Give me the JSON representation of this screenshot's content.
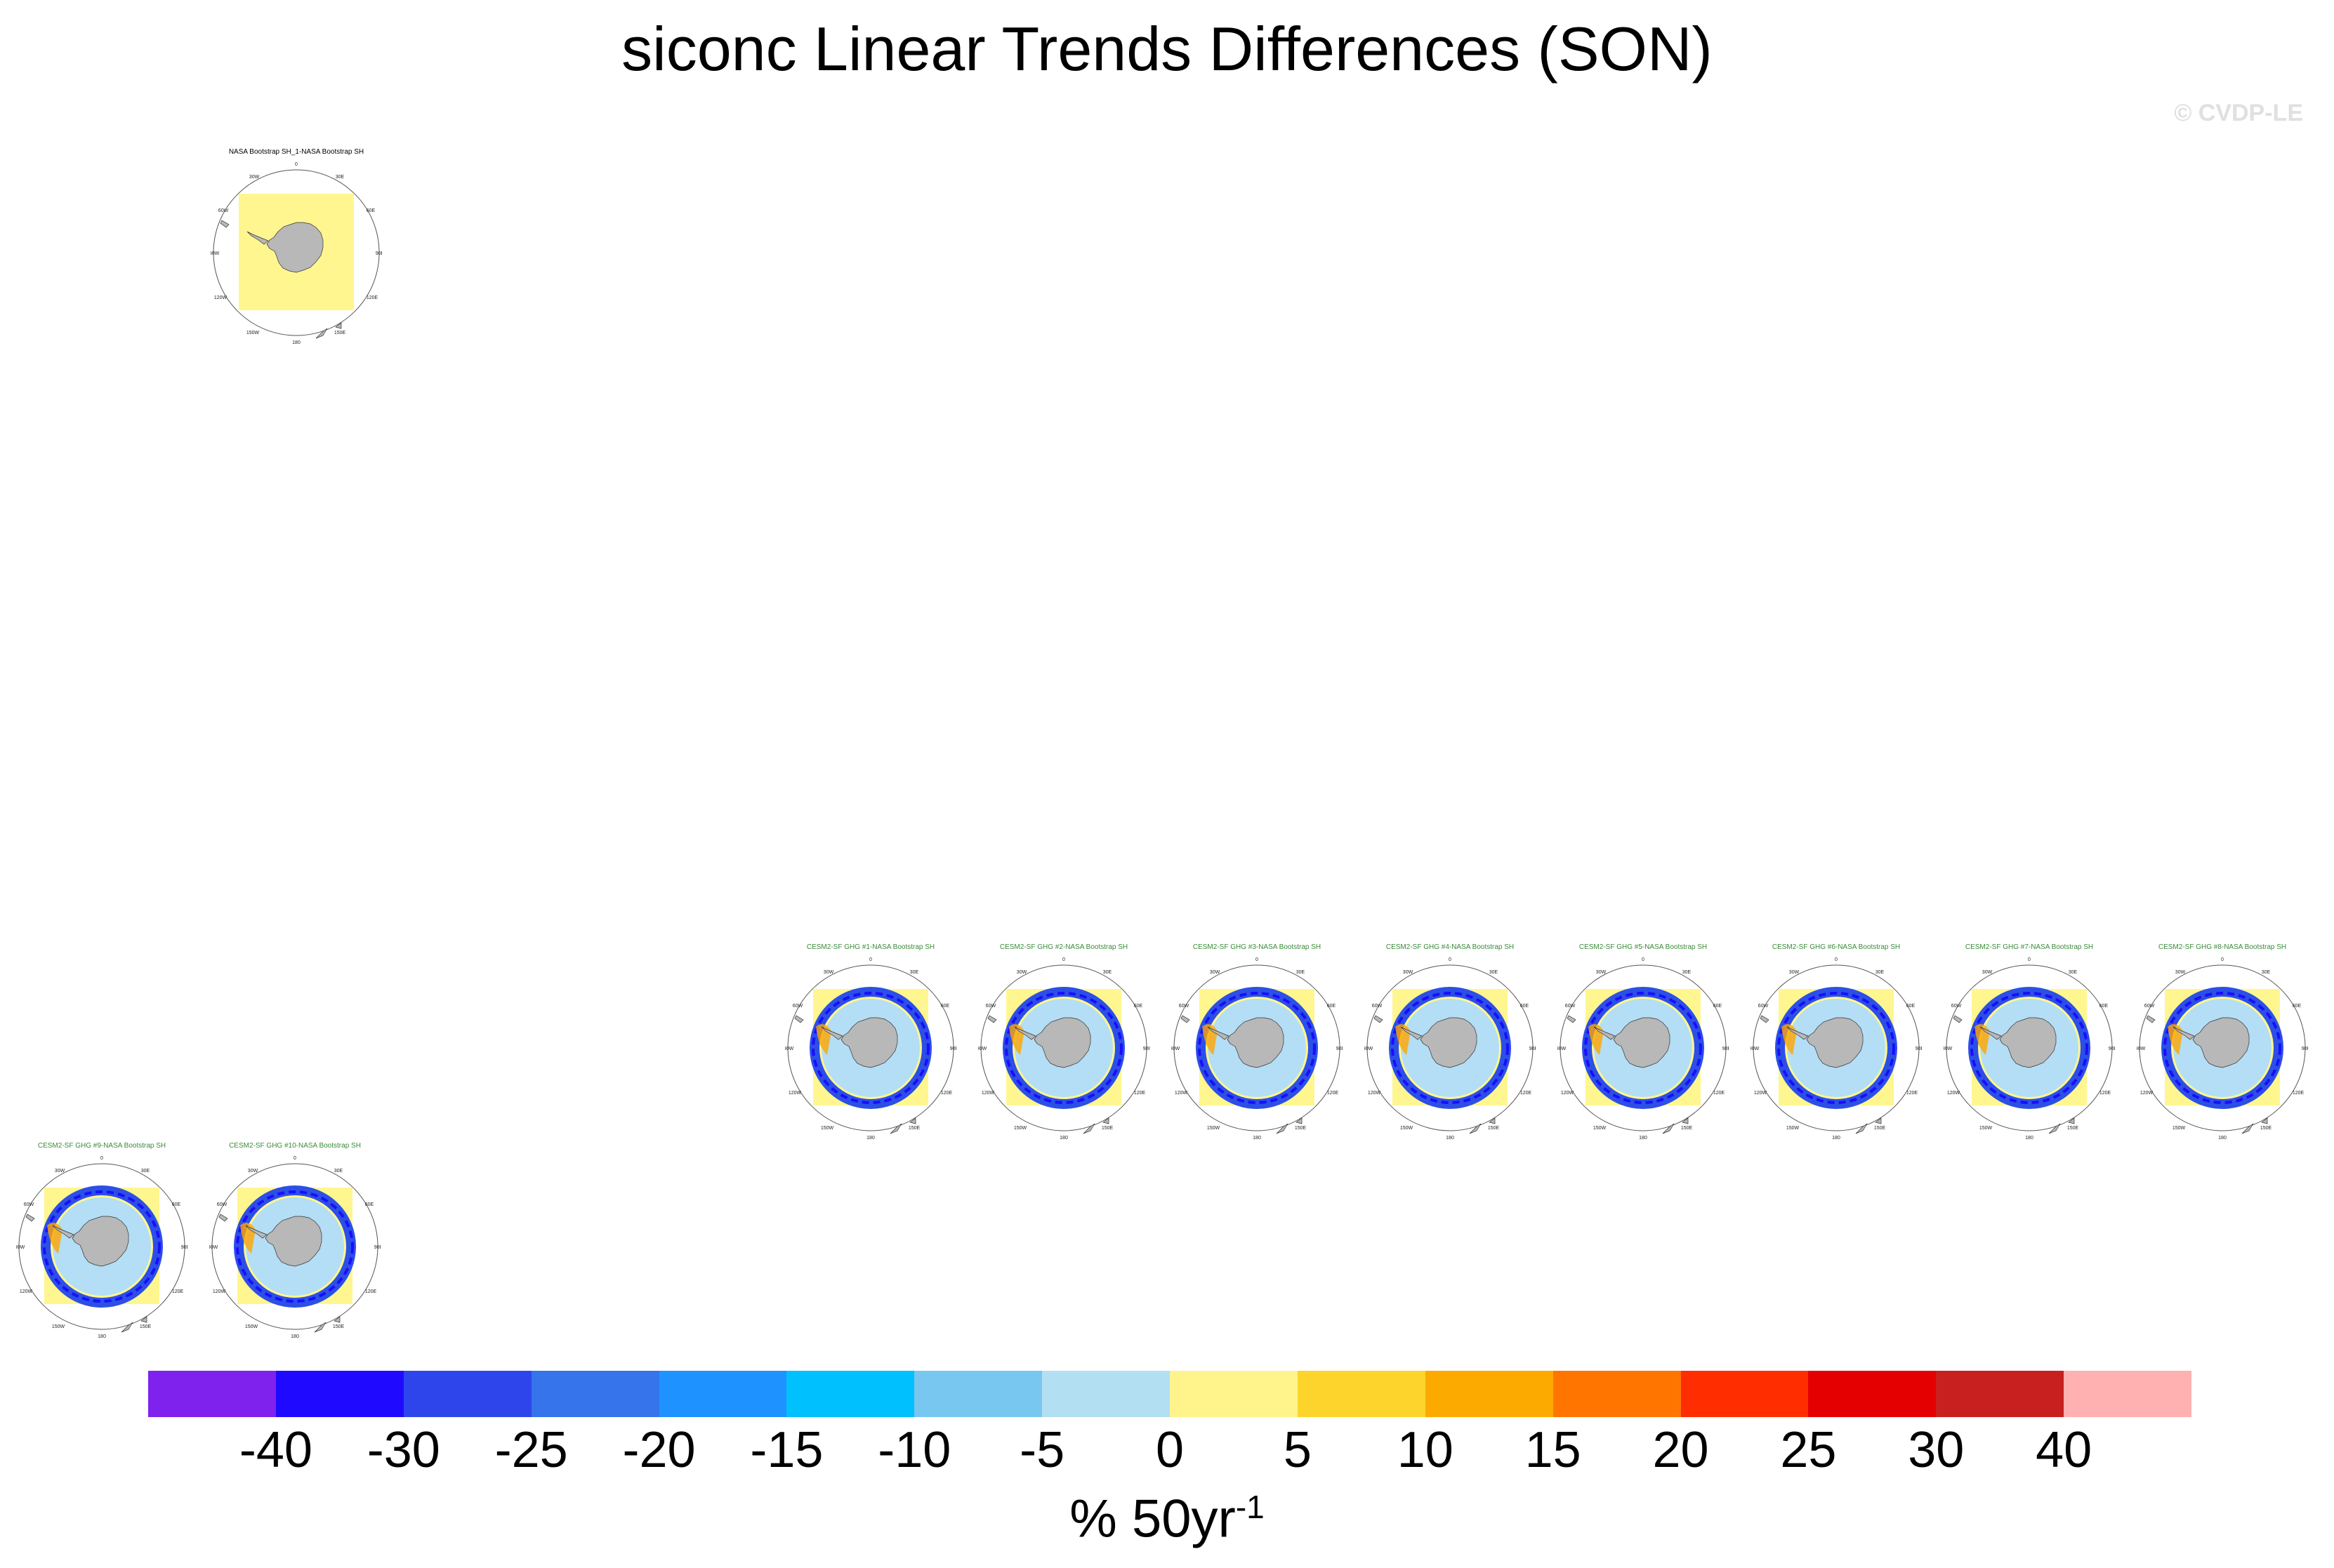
{
  "title": "siconc Linear Trends Differences (SON)",
  "copyright": "© CVDP-LE",
  "panels": [
    {
      "title": "NASA Bootstrap SH_1-NASA Bootstrap SH",
      "kind": "obs",
      "title_color": "#000000"
    },
    {
      "title": "CESM2-SF GHG #1-NASA Bootstrap SH",
      "kind": "model",
      "title_color": "#3a8a3a"
    },
    {
      "title": "CESM2-SF GHG #2-NASA Bootstrap SH",
      "kind": "model",
      "title_color": "#3a8a3a"
    },
    {
      "title": "CESM2-SF GHG #3-NASA Bootstrap SH",
      "kind": "model",
      "title_color": "#3a8a3a"
    },
    {
      "title": "CESM2-SF GHG #4-NASA Bootstrap SH",
      "kind": "model",
      "title_color": "#3a8a3a"
    },
    {
      "title": "CESM2-SF GHG #5-NASA Bootstrap SH",
      "kind": "model",
      "title_color": "#3a8a3a"
    },
    {
      "title": "CESM2-SF GHG #6-NASA Bootstrap SH",
      "kind": "model",
      "title_color": "#3a8a3a"
    },
    {
      "title": "CESM2-SF GHG #7-NASA Bootstrap SH",
      "kind": "model",
      "title_color": "#3a8a3a"
    },
    {
      "title": "CESM2-SF GHG #8-NASA Bootstrap SH",
      "kind": "model",
      "title_color": "#3a8a3a"
    },
    {
      "title": "CESM2-SF GHG #9-NASA Bootstrap SH",
      "kind": "model",
      "title_color": "#3a8a3a"
    },
    {
      "title": "CESM2-SF GHG #10-NASA Bootstrap SH",
      "kind": "model",
      "title_color": "#3a8a3a"
    }
  ],
  "map_labels": {
    "lon_0": "0",
    "lon_30e": "30E",
    "lon_30w": "30W",
    "lon_60e": "60E",
    "lon_60w": "60W",
    "lon_90e": "90E",
    "lon_90w": "90W",
    "lon_120e": "120E",
    "lon_120w": "120W",
    "lon_150e": "150E",
    "lon_150w": "150W",
    "lon_180": "180"
  },
  "map_colors": {
    "land": "#b8b8b8",
    "obs_fill": "#fff68f",
    "ring": "#2c4fe6",
    "ring_dark": "#1a0dff",
    "inner": "#b3def5",
    "orange": "#ffa500"
  },
  "colorbar": {
    "colors": [
      "#7f22ee",
      "#1f0aff",
      "#2f45ec",
      "#3574ea",
      "#1e93ff",
      "#00c0fd",
      "#77c7f1",
      "#b3dff3",
      "#fef48b",
      "#fdd42b",
      "#fdaa00",
      "#ff7500",
      "#ff2d00",
      "#e40000",
      "#c8201e",
      "#ffb0b0"
    ],
    "labels": [
      "-40",
      "-30",
      "-25",
      "-20",
      "-15",
      "-10",
      "-5",
      "0",
      "5",
      "10",
      "15",
      "20",
      "25",
      "30",
      "40"
    ],
    "units": "% 50yr",
    "units_exponent": "-1"
  }
}
